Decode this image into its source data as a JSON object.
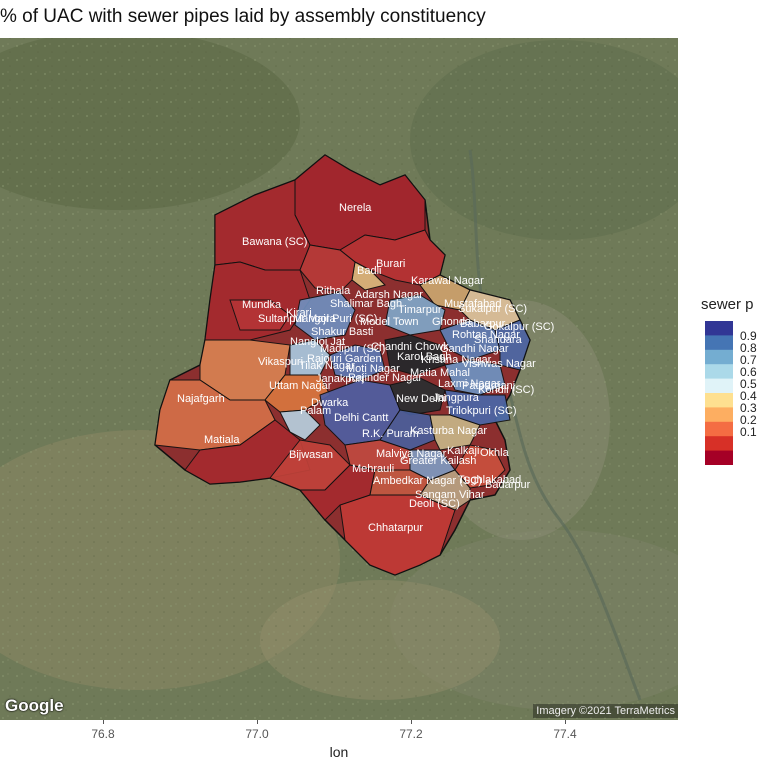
{
  "title": "% of UAC with sewer pipes laid by assembly constituency",
  "x_axis": {
    "label": "lon",
    "ticks": [
      "76.8",
      "77.0",
      "77.2",
      "77.4"
    ]
  },
  "legend": {
    "title": "sewer p",
    "entries": [
      "0.9",
      "0.8",
      "0.7",
      "0.6",
      "0.5",
      "0.4",
      "0.3",
      "0.2",
      "0.1"
    ],
    "colors": [
      "#313695",
      "#4575b4",
      "#74add1",
      "#abd9e9",
      "#e0f3f8",
      "#fee090",
      "#fdae61",
      "#f46d43",
      "#d73027",
      "#a50026"
    ]
  },
  "attribution": {
    "google": "Google",
    "imagery": "Imagery ©2021 TerraMetrics"
  },
  "constituencies": [
    "Nerela",
    "Bawana (SC)",
    "Burari",
    "Badli",
    "Karawal Nagar",
    "Rithala",
    "Adarsh Nagar",
    "Shalimar Bagh",
    "Mustafabad",
    "Timarpur",
    "Mundka",
    "Sultanpur Majra (SC)",
    "Kirari",
    "Mangol Puri (SC)",
    "Model Town",
    "Ghonda",
    "Babarpur",
    "Seelampur",
    "Gokalpur (SC)",
    "Shakur Basti",
    "Rohtas Nagar",
    "Gandhi Nagar",
    "Shahdara",
    "Nangloi Jat",
    "Madipur (SC)",
    "Chandni Chowk",
    "Karol Bagh",
    "Vikaspuri",
    "Rajouri Garden",
    "Tilak Nagar",
    "Moti Nagar",
    "Patel Nagar",
    "Krishna Nagar",
    "Vishwas Nagar",
    "Janakpuri",
    "Rajinder Nagar",
    "Matia Mahal",
    "Laxmi Nagar",
    "Uttam Nagar",
    "Kondli (SC)",
    "Patparganj",
    "New Delhi",
    "Jangpura",
    "Najafgarh",
    "Dwarka",
    "Palam",
    "Delhi Cantt",
    "Trilokpuri (SC)",
    "R.K. Puram",
    "Kasturba Nagar",
    "Matiala",
    "Malviya Nagar",
    "Kalkaji",
    "Okhla",
    "Bijwasan",
    "Mehrauli",
    "Greater Kailash",
    "Tughlakabad",
    "Badarpur",
    "Ambedkar Nagar (SC)",
    "Sangam Vihar",
    "Deoli (SC)",
    "Chhatarpur"
  ]
}
